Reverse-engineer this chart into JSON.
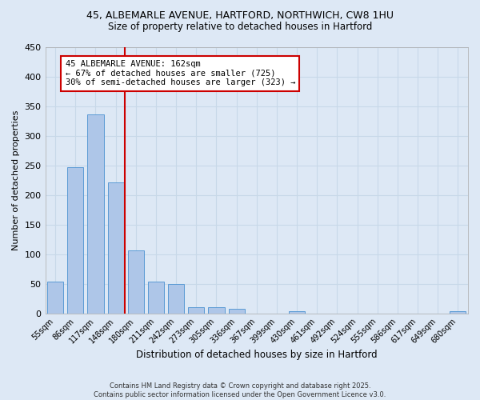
{
  "title1": "45, ALBEMARLE AVENUE, HARTFORD, NORTHWICH, CW8 1HU",
  "title2": "Size of property relative to detached houses in Hartford",
  "xlabel": "Distribution of detached houses by size in Hartford",
  "ylabel": "Number of detached properties",
  "categories": [
    "55sqm",
    "86sqm",
    "117sqm",
    "148sqm",
    "180sqm",
    "211sqm",
    "242sqm",
    "273sqm",
    "305sqm",
    "336sqm",
    "367sqm",
    "399sqm",
    "430sqm",
    "461sqm",
    "492sqm",
    "524sqm",
    "555sqm",
    "586sqm",
    "617sqm",
    "649sqm",
    "680sqm"
  ],
  "values": [
    53,
    247,
    336,
    222,
    107,
    53,
    49,
    10,
    10,
    8,
    0,
    0,
    3,
    0,
    0,
    0,
    0,
    0,
    0,
    0,
    3
  ],
  "bar_color": "#aec6e8",
  "bar_edge_color": "#5b9bd5",
  "bar_width": 0.8,
  "ylim": [
    0,
    450
  ],
  "yticks": [
    0,
    50,
    100,
    150,
    200,
    250,
    300,
    350,
    400,
    450
  ],
  "property_line_color": "#cc0000",
  "annotation_text": "45 ALBEMARLE AVENUE: 162sqm\n← 67% of detached houses are smaller (725)\n30% of semi-detached houses are larger (323) →",
  "box_color": "#ffffff",
  "box_edge_color": "#cc0000",
  "grid_color": "#c8d8e8",
  "background_color": "#dde8f5",
  "footer_text": "Contains HM Land Registry data © Crown copyright and database right 2025.\nContains public sector information licensed under the Open Government Licence v3.0."
}
